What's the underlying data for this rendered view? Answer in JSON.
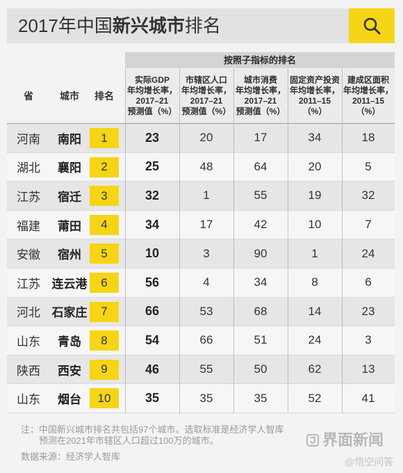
{
  "chart_data": {
    "type": "table",
    "title": {
      "prefix": "2017年中国",
      "highlight": "新兴城市",
      "suffix": "排名"
    },
    "group_header": "按照子指标的排名",
    "headers": {
      "province": "省",
      "city": "城市",
      "rank": "排名"
    },
    "metric_headers": {
      "gdp": [
        "实际GDP",
        "年均增长率，",
        "2017–21",
        "预测值（%）"
      ],
      "population": [
        "市辖区人口",
        "年均增长率，",
        "2017–21",
        "预测值（%）"
      ],
      "consumption": [
        "城市消费",
        "年均增长率，",
        "2017–21",
        "预测值（%）"
      ],
      "investment": [
        "固定资产投资",
        "年均增长率，",
        "2011–15",
        "（%）"
      ],
      "built_area": [
        "建成区面积",
        "年均增长率，",
        "2011–15",
        "（%）"
      ]
    },
    "rows": [
      {
        "province": "河南",
        "city": "南阳",
        "rank": 1,
        "gdp": 23,
        "population": 20,
        "consumption": 17,
        "investment": 34,
        "built_area": 18
      },
      {
        "province": "湖北",
        "city": "襄阳",
        "rank": 2,
        "gdp": 25,
        "population": 48,
        "consumption": 64,
        "investment": 20,
        "built_area": 5
      },
      {
        "province": "江苏",
        "city": "宿迁",
        "rank": 3,
        "gdp": 32,
        "population": 1,
        "consumption": 55,
        "investment": 19,
        "built_area": 32
      },
      {
        "province": "福建",
        "city": "莆田",
        "rank": 4,
        "gdp": 34,
        "population": 17,
        "consumption": 42,
        "investment": 10,
        "built_area": 7
      },
      {
        "province": "安徽",
        "city": "宿州",
        "rank": 5,
        "gdp": 10,
        "population": 3,
        "consumption": 90,
        "investment": 1,
        "built_area": 24
      },
      {
        "province": "江苏",
        "city": "连云港",
        "rank": 6,
        "gdp": 56,
        "population": 4,
        "consumption": 34,
        "investment": 8,
        "built_area": 6
      },
      {
        "province": "河北",
        "city": "石家庄",
        "rank": 7,
        "gdp": 66,
        "population": 53,
        "consumption": 68,
        "investment": 14,
        "built_area": 23
      },
      {
        "province": "山东",
        "city": "青岛",
        "rank": 8,
        "gdp": 54,
        "population": 66,
        "consumption": 51,
        "investment": 24,
        "built_area": 3
      },
      {
        "province": "陕西",
        "city": "西安",
        "rank": 9,
        "gdp": 46,
        "population": 55,
        "consumption": 50,
        "investment": 62,
        "built_area": 13
      },
      {
        "province": "山东",
        "city": "烟台",
        "rank": 10,
        "gdp": 35,
        "population": 35,
        "consumption": 35,
        "investment": 52,
        "built_area": 41
      }
    ]
  },
  "header": {
    "icon": "search-icon"
  },
  "footer": {
    "note_line1": "注：中国新兴城市排名共包括97个城市。选取标准是经济学人智库",
    "note_line2": "预测在2021年市辖区人口超过100万的城市。",
    "source": "数据来源：经济学人智库"
  },
  "watermark": {
    "brand": "界面新闻",
    "brand_icon": "jiemian-logo-icon",
    "secondary": "@悟空问答"
  },
  "colors": {
    "page_bg": "#f3f3f3",
    "title_bar": "#e2e2e2",
    "accent": "#f6d516",
    "group_header": "#d4d4d4",
    "header_cells": "#ebebeb",
    "row_shade": "#e6e6e6",
    "row_plain": "#f6f6f6",
    "text": "#333333",
    "note_text": "#9a9a9a",
    "watermark": "#b8b8b8"
  }
}
